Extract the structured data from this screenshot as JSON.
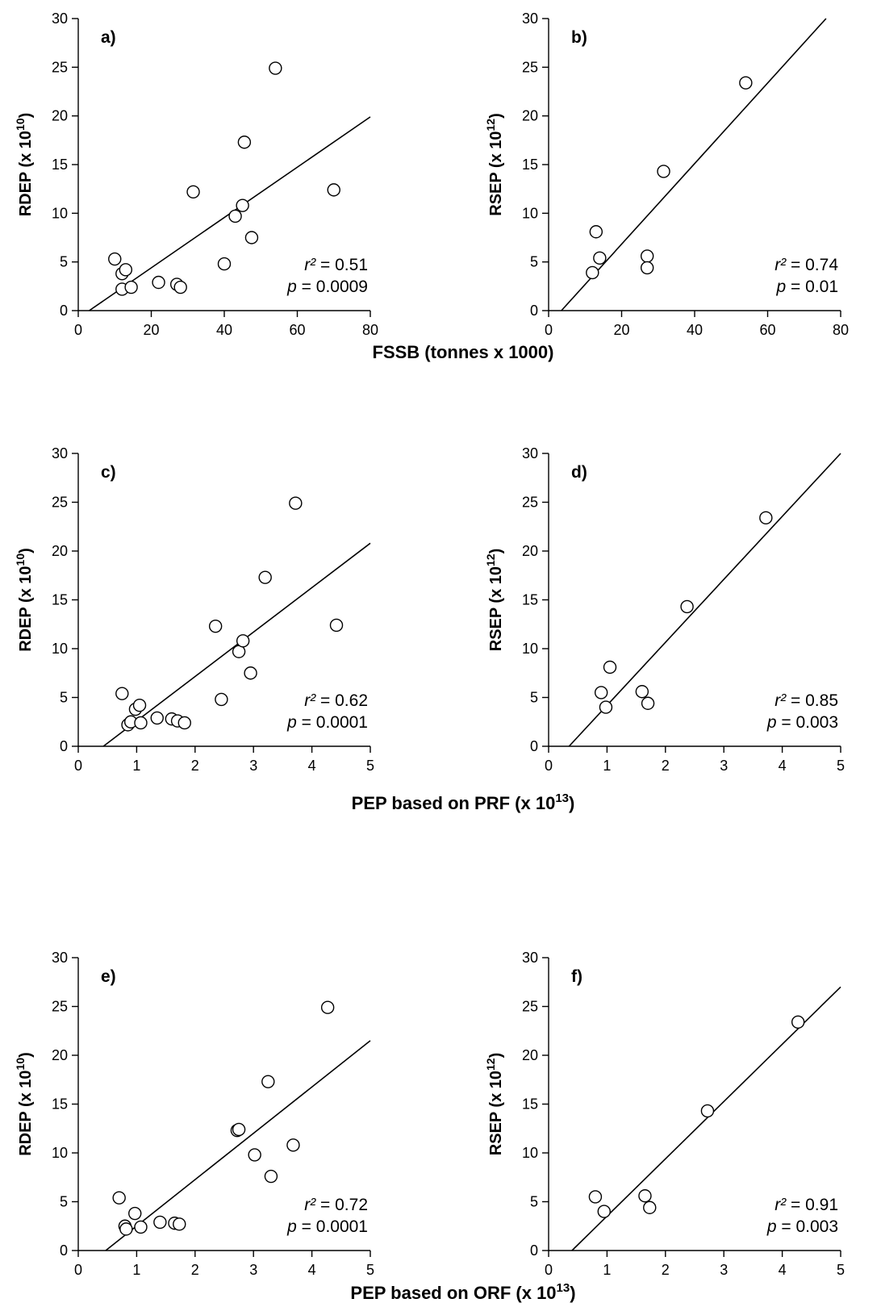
{
  "chart_data": [
    {
      "type": "scatter",
      "panel": "a)",
      "ylabel": "RDEP (x 10",
      "ylabel_sup": "10",
      "ylim": [
        0,
        30
      ],
      "xlim": [
        0,
        80
      ],
      "yticks": [
        0,
        5,
        10,
        15,
        20,
        25,
        30
      ],
      "xticks": [
        0,
        20,
        40,
        60,
        80
      ],
      "points": [
        [
          10,
          5.3
        ],
        [
          12,
          3.8
        ],
        [
          13,
          4.2
        ],
        [
          12,
          2.2
        ],
        [
          14.5,
          2.4
        ],
        [
          22,
          2.9
        ],
        [
          27,
          2.7
        ],
        [
          28,
          2.4
        ],
        [
          31.5,
          12.2
        ],
        [
          40,
          4.8
        ],
        [
          43,
          9.7
        ],
        [
          45,
          10.8
        ],
        [
          45.5,
          17.3
        ],
        [
          47.5,
          7.5
        ],
        [
          54,
          24.9
        ],
        [
          70,
          12.4
        ]
      ],
      "fit_line": [
        [
          3,
          0
        ],
        [
          80,
          19.9
        ]
      ],
      "r2_label": "r²",
      "r2_value": " = 0.51",
      "p_label": "p",
      "p_value": " = 0.0009"
    },
    {
      "type": "scatter",
      "panel": "b)",
      "ylabel": "RSEP (x 10",
      "ylabel_sup": "12",
      "ylim": [
        0,
        30
      ],
      "xlim": [
        0,
        80
      ],
      "yticks": [
        0,
        5,
        10,
        15,
        20,
        25,
        30
      ],
      "xticks": [
        0,
        20,
        40,
        60,
        80
      ],
      "points": [
        [
          12,
          3.9
        ],
        [
          13,
          8.1
        ],
        [
          14,
          5.4
        ],
        [
          27,
          5.6
        ],
        [
          27,
          4.4
        ],
        [
          31.5,
          14.3
        ],
        [
          54,
          23.4
        ]
      ],
      "fit_line": [
        [
          3.5,
          0
        ],
        [
          76,
          30
        ]
      ],
      "r2_label": "r²",
      "r2_value": " = 0.74",
      "p_label": "p",
      "p_value": " = 0.01"
    },
    {
      "type": "scatter",
      "panel": "c)",
      "ylabel": "RDEP (x 10",
      "ylabel_sup": "10",
      "ylim": [
        0,
        30
      ],
      "xlim": [
        0,
        5
      ],
      "yticks": [
        0,
        5,
        10,
        15,
        20,
        25,
        30
      ],
      "xticks": [
        0,
        1,
        2,
        3,
        4,
        5
      ],
      "points": [
        [
          0.75,
          5.4
        ],
        [
          0.85,
          2.2
        ],
        [
          0.9,
          2.5
        ],
        [
          0.98,
          3.8
        ],
        [
          1.05,
          4.2
        ],
        [
          1.07,
          2.4
        ],
        [
          1.35,
          2.9
        ],
        [
          1.6,
          2.8
        ],
        [
          1.7,
          2.6
        ],
        [
          1.82,
          2.4
        ],
        [
          2.35,
          12.3
        ],
        [
          2.45,
          4.8
        ],
        [
          2.75,
          9.7
        ],
        [
          2.82,
          10.8
        ],
        [
          2.95,
          7.5
        ],
        [
          3.2,
          17.3
        ],
        [
          3.72,
          24.9
        ],
        [
          4.42,
          12.4
        ]
      ],
      "fit_line": [
        [
          0.43,
          0
        ],
        [
          5,
          20.8
        ]
      ],
      "r2_label": "r²",
      "r2_value": " = 0.62",
      "p_label": "p",
      "p_value": " = 0.0001"
    },
    {
      "type": "scatter",
      "panel": "d)",
      "ylabel": "RSEP (x 10",
      "ylabel_sup": "12",
      "ylim": [
        0,
        30
      ],
      "xlim": [
        0,
        5
      ],
      "yticks": [
        0,
        5,
        10,
        15,
        20,
        25,
        30
      ],
      "xticks": [
        0,
        1,
        2,
        3,
        4,
        5
      ],
      "points": [
        [
          0.9,
          5.5
        ],
        [
          0.98,
          4.0
        ],
        [
          1.05,
          8.1
        ],
        [
          1.6,
          5.6
        ],
        [
          1.7,
          4.4
        ],
        [
          2.37,
          14.3
        ],
        [
          3.72,
          23.4
        ]
      ],
      "fit_line": [
        [
          0.35,
          0
        ],
        [
          5,
          30
        ]
      ],
      "r2_label": "r²",
      "r2_value": " = 0.85",
      "p_label": "p",
      "p_value": " = 0.003"
    },
    {
      "type": "scatter",
      "panel": "e)",
      "ylabel": "RDEP (x 10",
      "ylabel_sup": "10",
      "ylim": [
        0,
        30
      ],
      "xlim": [
        0,
        5
      ],
      "yticks": [
        0,
        5,
        10,
        15,
        20,
        25,
        30
      ],
      "xticks": [
        0,
        1,
        2,
        3,
        4,
        5
      ],
      "points": [
        [
          0.7,
          5.4
        ],
        [
          0.8,
          2.5
        ],
        [
          0.82,
          2.2
        ],
        [
          0.97,
          3.8
        ],
        [
          1.07,
          2.4
        ],
        [
          1.4,
          2.9
        ],
        [
          1.65,
          2.8
        ],
        [
          1.73,
          2.7
        ],
        [
          2.72,
          12.3
        ],
        [
          2.75,
          12.4
        ],
        [
          3.02,
          9.8
        ],
        [
          3.25,
          17.3
        ],
        [
          3.3,
          7.6
        ],
        [
          3.68,
          10.8
        ],
        [
          4.27,
          24.9
        ]
      ],
      "fit_line": [
        [
          0.47,
          0
        ],
        [
          5,
          21.5
        ]
      ],
      "r2_label": "r²",
      "r2_value": " = 0.72",
      "p_label": "p",
      "p_value": " = 0.0001"
    },
    {
      "type": "scatter",
      "panel": "f)",
      "ylabel": "RSEP (x 10",
      "ylabel_sup": "12",
      "ylim": [
        0,
        30
      ],
      "xlim": [
        0,
        5
      ],
      "yticks": [
        0,
        5,
        10,
        15,
        20,
        25,
        30
      ],
      "xticks": [
        0,
        1,
        2,
        3,
        4,
        5
      ],
      "points": [
        [
          0.8,
          5.5
        ],
        [
          0.95,
          4.0
        ],
        [
          1.65,
          5.6
        ],
        [
          1.73,
          4.4
        ],
        [
          2.72,
          14.3
        ],
        [
          4.27,
          23.4
        ]
      ],
      "fit_line": [
        [
          0.4,
          0
        ],
        [
          5,
          27
        ]
      ],
      "r2_label": "r²",
      "r2_value": " = 0.91",
      "p_label": "p",
      "p_value": " = 0.003"
    }
  ],
  "xlabels": {
    "row1": {
      "text": "FSSB (tonnes x 1000)"
    },
    "row2": {
      "text": "PEP based on PRF (x 10",
      "sup": "13",
      "close": ")"
    },
    "row3": {
      "text": "PEP based on ORF (x 10",
      "sup": "13",
      "close": ")"
    }
  },
  "ylabel_close": ")"
}
